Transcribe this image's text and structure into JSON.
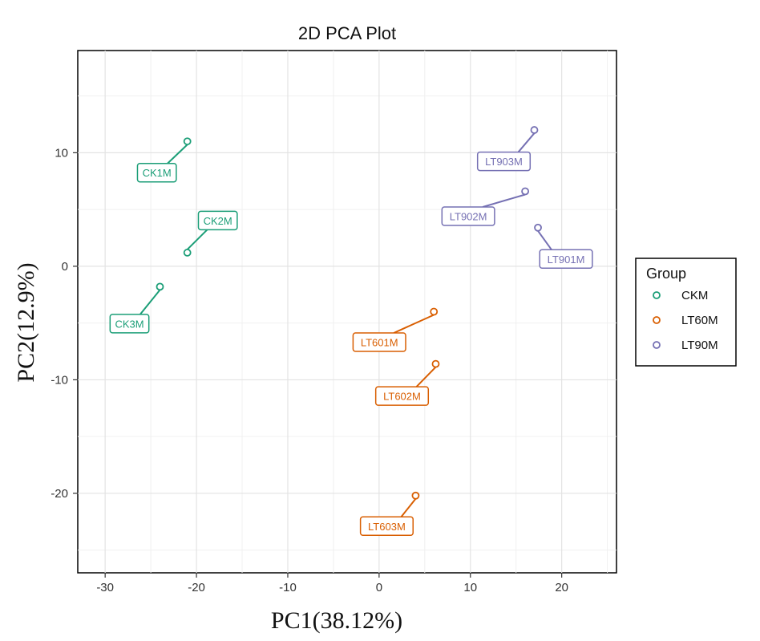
{
  "chart_data": {
    "type": "scatter",
    "title": "2D PCA Plot",
    "xlabel": "PC1(38.12%)",
    "ylabel": "PC2(12.9%)",
    "xlim": [
      -33,
      26
    ],
    "ylim": [
      -27,
      19
    ],
    "xticks": [
      -30,
      -20,
      -10,
      0,
      10,
      20
    ],
    "yticks": [
      -20,
      -10,
      0,
      10
    ],
    "grid": true,
    "legend": {
      "title": "Group",
      "position": "right"
    },
    "series": [
      {
        "name": "CKM",
        "color": "#1b9e77",
        "points": [
          {
            "label": "CK1M",
            "x": -21.0,
            "y": 11.0
          },
          {
            "label": "CK2M",
            "x": -21.0,
            "y": 1.2
          },
          {
            "label": "CK3M",
            "x": -24.0,
            "y": -1.8
          }
        ]
      },
      {
        "name": "LT60M",
        "color": "#d95f02",
        "points": [
          {
            "label": "LT601M",
            "x": 6.0,
            "y": -4.0
          },
          {
            "label": "LT602M",
            "x": 6.2,
            "y": -8.6
          },
          {
            "label": "LT603M",
            "x": 4.0,
            "y": -20.2
          }
        ]
      },
      {
        "name": "LT90M",
        "color": "#7570b3",
        "points": [
          {
            "label": "LT901M",
            "x": 17.4,
            "y": 3.4
          },
          {
            "label": "LT902M",
            "x": 16.0,
            "y": 6.6
          },
          {
            "label": "LT903M",
            "x": 17.0,
            "y": 12.0
          }
        ]
      }
    ]
  }
}
